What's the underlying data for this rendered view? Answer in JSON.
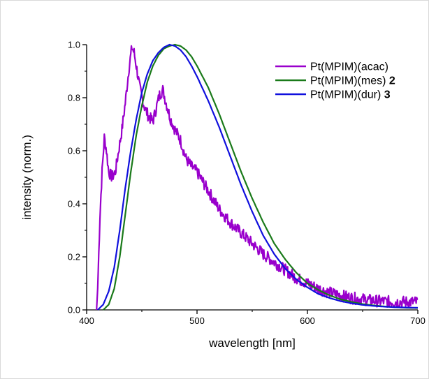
{
  "chart_data": {
    "type": "line",
    "xlabel": "wavelength [nm]",
    "ylabel": "intensity (norm.)",
    "xlim": [
      400,
      700
    ],
    "ylim": [
      0.0,
      1.0
    ],
    "xticks": [
      "400",
      "500",
      "600",
      "700"
    ],
    "yticks": [
      "0.0",
      "0.2",
      "0.4",
      "0.6",
      "0.8",
      "1.0"
    ],
    "grid": false,
    "legend_position": "top-right",
    "series": [
      {
        "name": "Pt(MPIM)(acac)",
        "label_bold_suffix": "",
        "color": "#9900cc",
        "noisy": true,
        "x": [
          409,
          410,
          412,
          414,
          416,
          418,
          420,
          423,
          426,
          429,
          432,
          435,
          438,
          441,
          443,
          445,
          448,
          452,
          456,
          460,
          463,
          466,
          469,
          472,
          476,
          480,
          485,
          490,
          495,
          500,
          510,
          520,
          530,
          540,
          550,
          560,
          570,
          580,
          590,
          600,
          610,
          620,
          630,
          640,
          650,
          660,
          670,
          680,
          690,
          700
        ],
        "y": [
          0.0,
          0.08,
          0.35,
          0.52,
          0.65,
          0.6,
          0.52,
          0.5,
          0.52,
          0.6,
          0.68,
          0.78,
          0.9,
          0.99,
          0.97,
          0.92,
          0.84,
          0.77,
          0.73,
          0.71,
          0.76,
          0.81,
          0.83,
          0.78,
          0.72,
          0.68,
          0.64,
          0.57,
          0.54,
          0.52,
          0.45,
          0.38,
          0.33,
          0.29,
          0.25,
          0.21,
          0.18,
          0.15,
          0.12,
          0.1,
          0.08,
          0.065,
          0.055,
          0.045,
          0.04,
          0.035,
          0.032,
          0.03,
          0.03,
          0.03
        ]
      },
      {
        "name": "Pt(MPIM)(mes) ",
        "label_bold_suffix": "2",
        "color": "#1a7a1a",
        "noisy": false,
        "x": [
          415,
          420,
          425,
          430,
          435,
          440,
          445,
          450,
          455,
          460,
          465,
          470,
          475,
          480,
          485,
          490,
          495,
          500,
          510,
          520,
          530,
          540,
          550,
          560,
          570,
          580,
          590,
          600,
          610,
          620,
          630,
          640,
          650,
          660,
          670,
          680,
          690,
          700
        ],
        "y": [
          0.0,
          0.02,
          0.08,
          0.2,
          0.36,
          0.52,
          0.66,
          0.77,
          0.86,
          0.92,
          0.96,
          0.985,
          0.995,
          1.0,
          0.995,
          0.98,
          0.955,
          0.92,
          0.84,
          0.74,
          0.63,
          0.52,
          0.42,
          0.33,
          0.25,
          0.19,
          0.14,
          0.1,
          0.075,
          0.055,
          0.04,
          0.03,
          0.022,
          0.017,
          0.013,
          0.01,
          0.008,
          0.007
        ]
      },
      {
        "name": "Pt(MPIM)(dur) ",
        "label_bold_suffix": "3",
        "color": "#1010dd",
        "noisy": false,
        "x": [
          410,
          415,
          420,
          425,
          430,
          435,
          440,
          445,
          450,
          455,
          460,
          465,
          470,
          475,
          480,
          485,
          490,
          495,
          500,
          510,
          520,
          530,
          540,
          550,
          560,
          570,
          580,
          590,
          600,
          610,
          620,
          630,
          640,
          650,
          660,
          670,
          680,
          690,
          700
        ],
        "y": [
          0.0,
          0.02,
          0.07,
          0.16,
          0.3,
          0.46,
          0.6,
          0.72,
          0.82,
          0.89,
          0.94,
          0.97,
          0.99,
          1.0,
          0.995,
          0.98,
          0.955,
          0.92,
          0.88,
          0.79,
          0.69,
          0.58,
          0.47,
          0.37,
          0.28,
          0.21,
          0.155,
          0.115,
          0.085,
          0.06,
          0.045,
          0.033,
          0.025,
          0.019,
          0.015,
          0.012,
          0.01,
          0.009,
          0.008
        ]
      }
    ]
  }
}
